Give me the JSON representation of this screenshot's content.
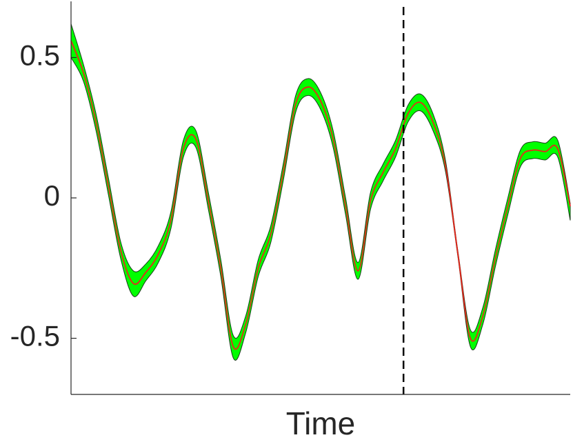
{
  "chart_data": {
    "type": "line",
    "xlabel": "Time",
    "x": [
      0,
      2.5,
      5,
      7.5,
      10,
      12.5,
      15,
      17.5,
      20,
      22.5,
      25,
      27.5,
      30,
      32.5,
      35,
      37.5,
      40,
      42.5,
      45,
      47.5,
      50,
      52.5,
      55,
      57.5,
      60,
      62.5,
      65,
      67.5,
      70,
      72.5,
      75,
      77.5,
      80,
      82.5,
      85,
      87.5,
      90,
      92.5,
      95,
      97.5,
      100
    ],
    "series": [
      {
        "color": "#e8251c",
        "values": [
          0.56,
          0.445,
          0.27,
          0.04,
          -0.19,
          -0.305,
          -0.265,
          -0.2,
          -0.08,
          0.175,
          0.21,
          -0.01,
          -0.25,
          -0.53,
          -0.45,
          -0.25,
          -0.13,
          0.09,
          0.335,
          0.395,
          0.345,
          0.21,
          -0.03,
          -0.26,
          -0.01,
          0.09,
          0.175,
          0.3,
          0.34,
          0.27,
          0.115,
          -0.2,
          -0.5,
          -0.42,
          -0.215,
          -0.03,
          0.14,
          0.17,
          0.165,
          0.175,
          -0.03
        ]
      }
    ],
    "band": {
      "color": "#00ff00",
      "upper": [
        0.62,
        0.475,
        0.3,
        0.07,
        -0.16,
        -0.26,
        -0.235,
        -0.17,
        -0.05,
        0.205,
        0.24,
        0.02,
        -0.22,
        -0.49,
        -0.42,
        -0.22,
        -0.1,
        0.12,
        0.365,
        0.425,
        0.375,
        0.24,
        0.0,
        -0.23,
        0.02,
        0.12,
        0.205,
        0.33,
        0.37,
        0.3,
        0.135,
        -0.19,
        -0.47,
        -0.39,
        -0.185,
        0.0,
        0.17,
        0.2,
        0.195,
        0.205,
        -0.02
      ],
      "lower": [
        0.5,
        0.415,
        0.24,
        0.01,
        -0.22,
        -0.35,
        -0.295,
        -0.23,
        -0.11,
        0.145,
        0.18,
        -0.04,
        -0.28,
        -0.57,
        -0.48,
        -0.28,
        -0.16,
        0.06,
        0.305,
        0.365,
        0.315,
        0.18,
        -0.06,
        -0.29,
        -0.04,
        0.06,
        0.145,
        0.27,
        0.31,
        0.24,
        0.095,
        -0.21,
        -0.53,
        -0.45,
        -0.245,
        -0.06,
        0.11,
        0.14,
        0.135,
        0.145,
        -0.08
      ]
    },
    "vline": 66.6,
    "xlim": [
      0,
      100
    ],
    "ylim": [
      -0.7,
      0.7
    ],
    "yticks": [
      -0.5,
      0,
      0.5
    ]
  }
}
